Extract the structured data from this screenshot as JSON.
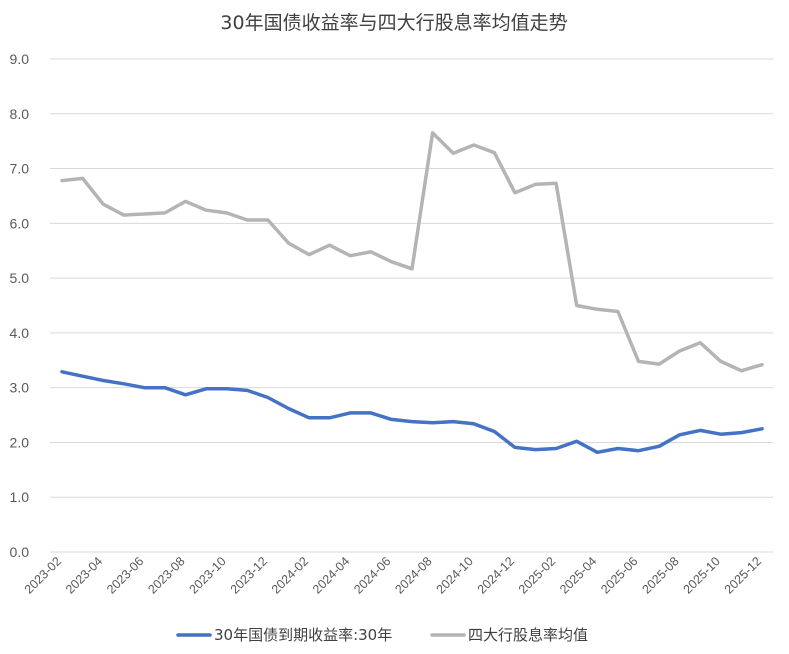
{
  "chart_data": {
    "type": "line",
    "title": "30年国债收益率与四大行股息率均值走势",
    "xlabel": "",
    "ylabel": "",
    "ylim": [
      0,
      9
    ],
    "y_ticks": [
      "0.0",
      "1.0",
      "2.0",
      "3.0",
      "4.0",
      "5.0",
      "6.0",
      "7.0",
      "8.0",
      "9.0"
    ],
    "x_tick_labels": [
      "2023-02",
      "2023-04",
      "2023-06",
      "2023-08",
      "2023-10",
      "2023-12",
      "2024-02",
      "2024-04",
      "2024-06",
      "2024-08",
      "2024-10",
      "2024-12",
      "2025-02",
      "2025-04",
      "2025-06",
      "2025-08",
      "2025-10",
      "2025-12"
    ],
    "grid": true,
    "legend_position": "bottom",
    "x": [
      "2023-02",
      "2023-03",
      "2023-04",
      "2023-05",
      "2023-06",
      "2023-07",
      "2023-08",
      "2023-09",
      "2023-10",
      "2023-11",
      "2023-12",
      "2024-01",
      "2024-02",
      "2024-03",
      "2024-04",
      "2024-05",
      "2024-06",
      "2024-07",
      "2024-08",
      "2024-09",
      "2024-10",
      "2024-11",
      "2024-12",
      "2025-01",
      "2025-02",
      "2025-03",
      "2025-04",
      "2025-05",
      "2025-06",
      "2025-07",
      "2025-08",
      "2025-09",
      "2025-10",
      "2025-11",
      "2025-12"
    ],
    "series": [
      {
        "name": "30年国债到期收益率:30年",
        "color": "#4472c4",
        "values": [
          3.29,
          3.21,
          3.13,
          3.07,
          3.0,
          3.0,
          2.87,
          2.98,
          2.98,
          2.95,
          2.82,
          2.62,
          2.45,
          2.45,
          2.54,
          2.54,
          2.42,
          2.38,
          2.36,
          2.38,
          2.34,
          2.2,
          1.91,
          1.87,
          1.89,
          2.02,
          1.82,
          1.89,
          1.85,
          1.93,
          2.14,
          2.22,
          2.15,
          2.18,
          2.25
        ]
      },
      {
        "name": "四大行股息率均值",
        "color": "#b4b4b4",
        "values": [
          6.78,
          6.82,
          6.35,
          6.15,
          6.17,
          6.19,
          6.4,
          6.24,
          6.19,
          6.06,
          6.06,
          5.64,
          5.43,
          5.6,
          5.41,
          5.48,
          5.3,
          5.17,
          7.65,
          7.28,
          7.43,
          7.29,
          6.56,
          6.71,
          6.73,
          4.5,
          4.43,
          4.39,
          3.48,
          3.43,
          3.67,
          3.82,
          3.48,
          3.31,
          3.42
        ]
      }
    ]
  }
}
